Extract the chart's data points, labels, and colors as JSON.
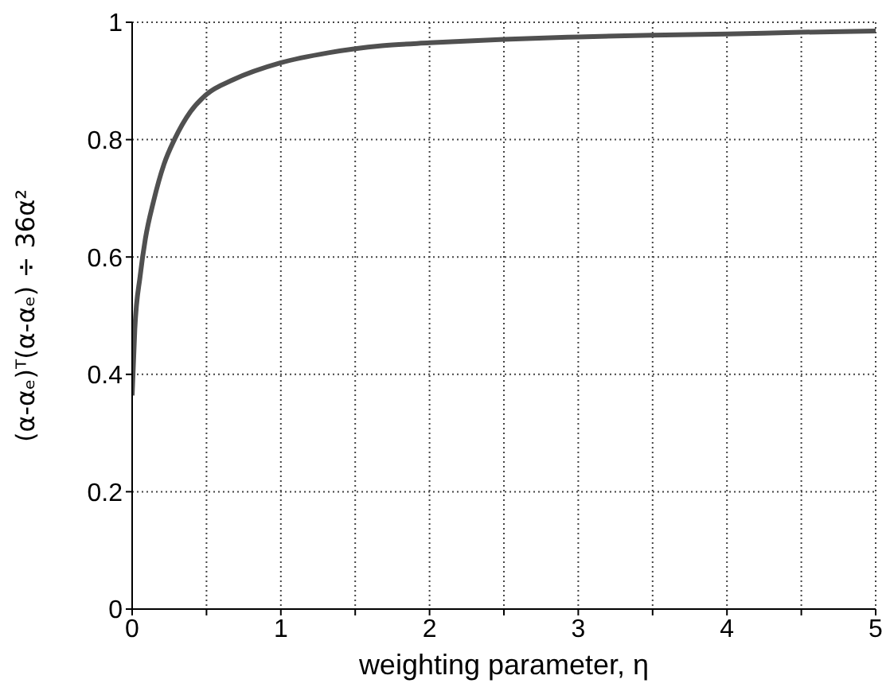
{
  "chart_data": {
    "type": "line",
    "xlabel": "weighting parameter, η",
    "ylabel": "(α-αₑ)ᵀ(α-αₑ) ÷ 36α²",
    "x": [
      0,
      0.018,
      0.054,
      0.089,
      0.143,
      0.214,
      0.286,
      0.393,
      0.5,
      0.679,
      1,
      1.32,
      1.68,
      2,
      2.5,
      3,
      3.5,
      4,
      4.5,
      5
    ],
    "series": [
      {
        "color": "#505050",
        "values": [
          0.364,
          0.477,
          0.568,
          0.631,
          0.694,
          0.758,
          0.801,
          0.848,
          0.877,
          0.902,
          0.931,
          0.948,
          0.96,
          0.965,
          0.971,
          0.975,
          0.978,
          0.98,
          0.983,
          0.985
        ]
      }
    ],
    "xlim": [
      0,
      5
    ],
    "xticks": [
      0,
      {
        "value": 0.5,
        "label": null
      },
      1,
      {
        "value": 1.5,
        "label": null
      },
      2,
      {
        "value": 2.5,
        "label": null
      },
      3,
      {
        "value": 3.5,
        "label": null
      },
      4,
      {
        "value": 4.5,
        "label": null
      },
      5
    ],
    "ylim": [
      0,
      1
    ],
    "yticks": [
      0,
      0.2,
      0.4,
      0.6,
      0.8,
      1
    ],
    "grid": true,
    "marker": "none",
    "line_style": "solid"
  }
}
